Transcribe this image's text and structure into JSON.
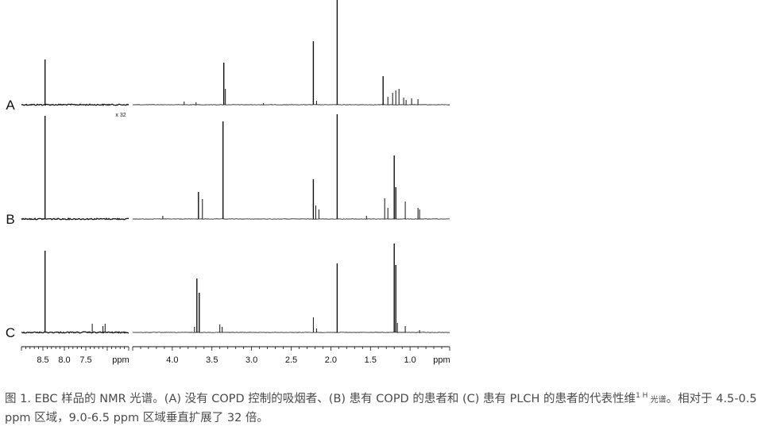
{
  "chart_data": {
    "type": "line",
    "title": "",
    "xlabel": "ppm",
    "ylabel": "",
    "scale_note": "x 32",
    "panels": {
      "left": {
        "xlim": [
          9.0,
          6.5
        ],
        "ticks": [
          8.5,
          8.0,
          7.5
        ],
        "tick_labels": [
          "8.5",
          "8.0",
          "7.5"
        ],
        "unit_label": "ppm"
      },
      "right": {
        "xlim": [
          4.5,
          0.5
        ],
        "ticks": [
          4.0,
          3.5,
          3.0,
          2.5,
          2.0,
          1.5,
          1.0
        ],
        "tick_labels": [
          "4.0",
          "3.5",
          "3.0",
          "2.5",
          "2.0",
          "1.5",
          "1.0"
        ],
        "unit_label": "ppm"
      }
    },
    "series": [
      {
        "name": "A",
        "color": "#111111",
        "peaks": [
          {
            "ppm": 8.45,
            "height": 0.57
          },
          {
            "ppm": 3.85,
            "height": 0.04
          },
          {
            "ppm": 3.7,
            "height": 0.03
          },
          {
            "ppm": 3.35,
            "height": 0.53
          },
          {
            "ppm": 3.33,
            "height": 0.2
          },
          {
            "ppm": 2.85,
            "height": 0.02
          },
          {
            "ppm": 2.22,
            "height": 0.8
          },
          {
            "ppm": 2.18,
            "height": 0.05
          },
          {
            "ppm": 1.92,
            "height": 1.35
          },
          {
            "ppm": 1.34,
            "height": 0.36
          },
          {
            "ppm": 1.28,
            "height": 0.1
          },
          {
            "ppm": 1.22,
            "height": 0.15
          },
          {
            "ppm": 1.18,
            "height": 0.18
          },
          {
            "ppm": 1.14,
            "height": 0.2
          },
          {
            "ppm": 1.08,
            "height": 0.09
          },
          {
            "ppm": 1.05,
            "height": 0.06
          },
          {
            "ppm": 0.98,
            "height": 0.08
          },
          {
            "ppm": 0.9,
            "height": 0.07
          }
        ]
      },
      {
        "name": "B",
        "color": "#111111",
        "peaks": [
          {
            "ppm": 8.45,
            "height": 1.3
          },
          {
            "ppm": 4.12,
            "height": 0.04
          },
          {
            "ppm": 3.67,
            "height": 0.34
          },
          {
            "ppm": 3.62,
            "height": 0.25
          },
          {
            "ppm": 3.36,
            "height": 1.23
          },
          {
            "ppm": 2.22,
            "height": 0.5
          },
          {
            "ppm": 2.19,
            "height": 0.17
          },
          {
            "ppm": 2.15,
            "height": 0.12
          },
          {
            "ppm": 1.92,
            "height": 1.32
          },
          {
            "ppm": 1.55,
            "height": 0.04
          },
          {
            "ppm": 1.32,
            "height": 0.26
          },
          {
            "ppm": 1.28,
            "height": 0.14
          },
          {
            "ppm": 1.2,
            "height": 0.8
          },
          {
            "ppm": 1.18,
            "height": 0.4
          },
          {
            "ppm": 1.06,
            "height": 0.22
          },
          {
            "ppm": 0.9,
            "height": 0.14
          },
          {
            "ppm": 0.88,
            "height": 0.12
          }
        ]
      },
      {
        "name": "C",
        "color": "#111111",
        "peaks": [
          {
            "ppm": 8.45,
            "height": 1.03
          },
          {
            "ppm": 7.35,
            "height": 0.11
          },
          {
            "ppm": 7.1,
            "height": 0.08
          },
          {
            "ppm": 7.05,
            "height": 0.11
          },
          {
            "ppm": 3.72,
            "height": 0.07
          },
          {
            "ppm": 3.69,
            "height": 0.68
          },
          {
            "ppm": 3.66,
            "height": 0.5
          },
          {
            "ppm": 3.4,
            "height": 0.1
          },
          {
            "ppm": 3.37,
            "height": 0.07
          },
          {
            "ppm": 2.22,
            "height": 0.19
          },
          {
            "ppm": 2.18,
            "height": 0.05
          },
          {
            "ppm": 1.92,
            "height": 0.87
          },
          {
            "ppm": 1.2,
            "height": 1.12
          },
          {
            "ppm": 1.18,
            "height": 0.85
          },
          {
            "ppm": 1.16,
            "height": 0.12
          },
          {
            "ppm": 1.06,
            "height": 0.08
          },
          {
            "ppm": 0.88,
            "height": 0.03
          }
        ]
      }
    ]
  },
  "caption": {
    "main": "图 1. EBC 样品的 NMR 光谱。(A) 没有 COPD 控制的吸烟者、(B) 患有 COPD 的患者和 (C) 患有 PLCH 的患者的代表性维",
    "sup": "1 H",
    "small": " 光谱",
    "end": "。相对于 4.5-0.5 ppm 区域，9.0-6.5 ppm 区域垂直扩展了 32 倍。"
  }
}
